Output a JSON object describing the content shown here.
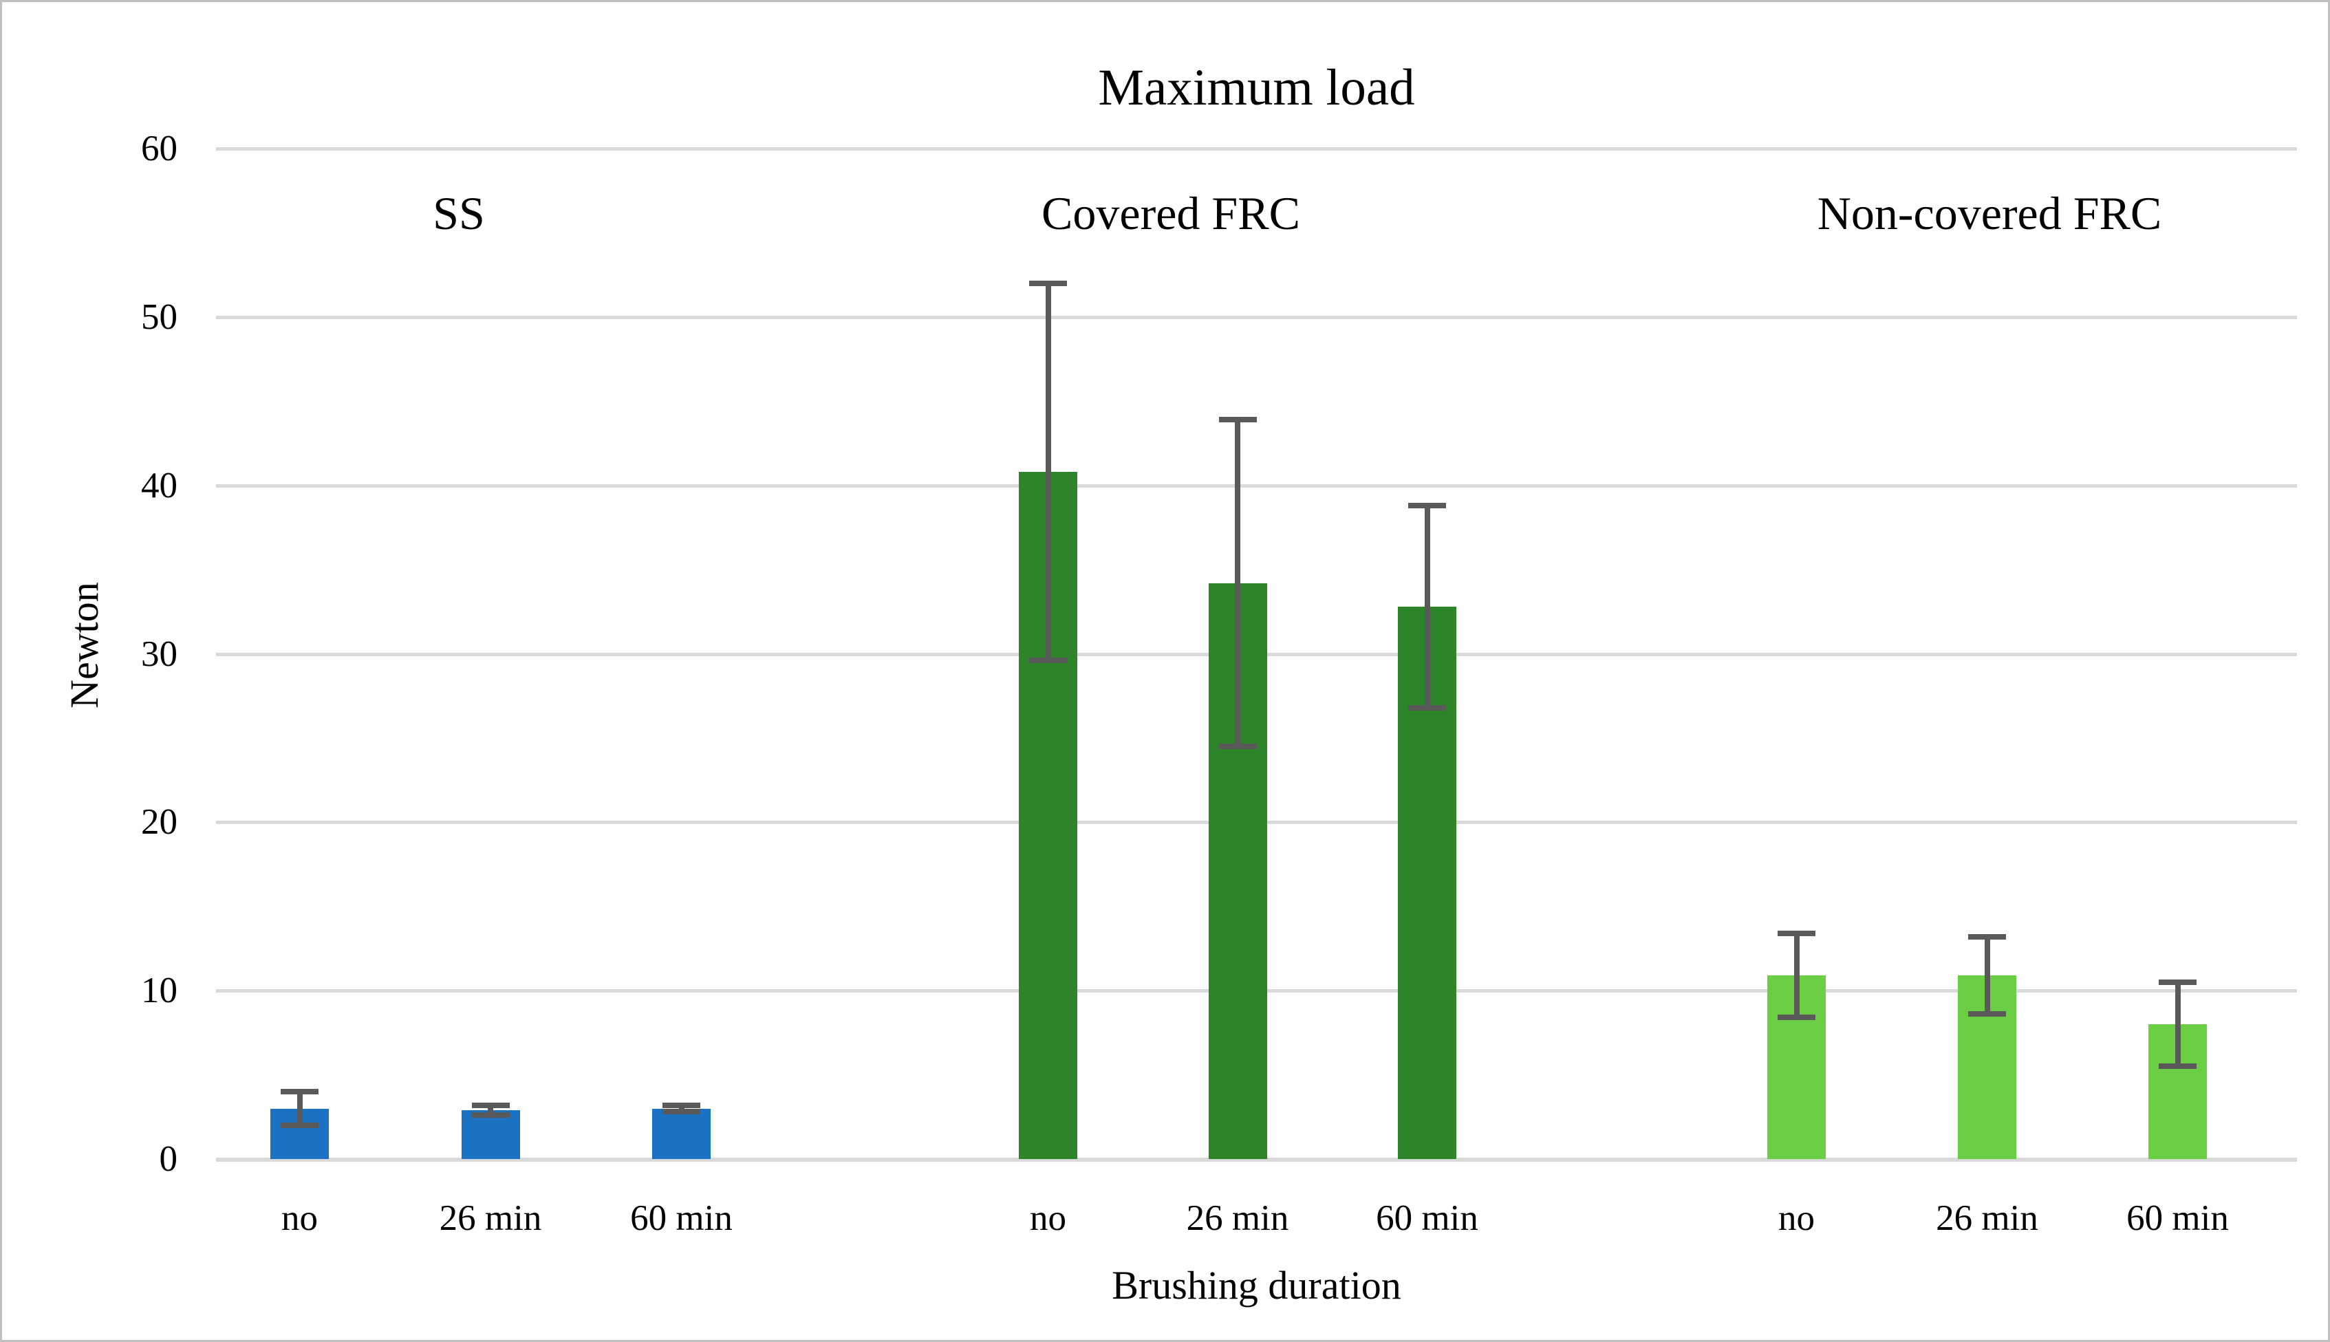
{
  "chart_data": {
    "type": "bar",
    "title": "Maximum load",
    "ylabel": "Newton",
    "xlabel": "Brushing duration",
    "ylim": [
      0,
      60
    ],
    "yticks": [
      60,
      50,
      40,
      30,
      20,
      10,
      0
    ],
    "grid": true,
    "legend": false,
    "categories": [
      "no",
      "26 min",
      "60 min"
    ],
    "series": [
      {
        "name": "SS",
        "color": "#1B72C2",
        "values": [
          3.0,
          2.9,
          3.0
        ],
        "errors": [
          1.0,
          0.3,
          0.2
        ]
      },
      {
        "name": "Covered FRC",
        "color": "#2E8428",
        "values": [
          40.8,
          34.2,
          32.8
        ],
        "errors": [
          11.2,
          9.7,
          6.0
        ]
      },
      {
        "name": "Non-covered FRC",
        "color": "#6CCE44",
        "values": [
          10.9,
          10.9,
          8.0
        ],
        "errors": [
          2.5,
          2.3,
          2.5
        ]
      }
    ],
    "error_bar_color": "#595959",
    "gridline_color": "#D9D9D9",
    "background": "#FFFFFF",
    "border_color": "#BFBFBF"
  }
}
